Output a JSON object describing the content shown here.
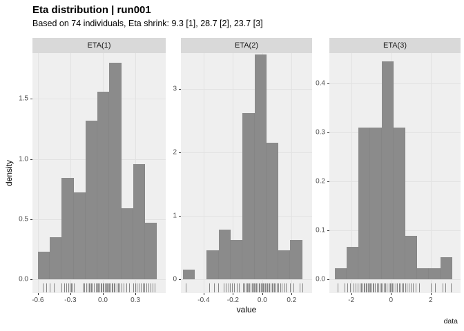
{
  "header": {
    "title": "Eta distribution | run001",
    "subtitle": "Based on 74 individuals, Eta shrink: 9.3 [1], 28.7 [2], 23.7 [3]"
  },
  "axes": {
    "ylabel": "density",
    "xlabel": "value",
    "caption": "data"
  },
  "colors": {
    "panel_bg": "#efefef",
    "gridline": "#e2e2e2",
    "bar_fill": "#8b8b8b",
    "strip_bg": "#d9d9d9",
    "axis_text": "#4d4d4d",
    "rug": "#2d2d2d",
    "title_text": "#000000"
  },
  "chart_data": {
    "type": "bar",
    "subtype": "faceted-histogram-with-rug",
    "title": "Eta distribution | run001",
    "subtitle": "Based on 74 individuals, Eta shrink: 9.3 [1], 28.7 [2], 23.7 [3]",
    "xlabel": "value",
    "ylabel": "density",
    "caption": "data",
    "grid": "major-only",
    "legend": "none",
    "panels": [
      {
        "label": "ETA(1)",
        "bin_start": -0.6,
        "bin_width": 0.11,
        "heights": [
          0.23,
          0.35,
          0.84,
          0.72,
          1.32,
          1.56,
          1.8,
          0.59,
          0.96,
          0.47
        ],
        "xlim": [
          -0.65,
          0.58
        ],
        "ylim_top": 1.88,
        "x_tick_values": [
          -0.6,
          -0.3,
          0.0,
          0.3
        ],
        "x_tick_labels": [
          "-0.6",
          "-0.3",
          "0.0",
          "0.3"
        ],
        "y_tick_values": [
          0.0,
          0.5,
          1.0,
          1.5
        ],
        "y_tick_labels": [
          "0.0",
          "0.5",
          "1.0",
          "1.5"
        ],
        "rug": [
          -0.555,
          -0.52,
          -0.49,
          -0.455,
          -0.38,
          -0.36,
          -0.335,
          -0.32,
          -0.305,
          -0.295,
          -0.285,
          -0.27,
          -0.185,
          -0.17,
          -0.155,
          -0.14,
          -0.13,
          -0.12,
          -0.11,
          -0.1,
          -0.08,
          -0.065,
          -0.05,
          -0.045,
          -0.035,
          -0.02,
          -0.01,
          0.0,
          0.008,
          0.018,
          0.03,
          0.04,
          0.05,
          0.06,
          0.072,
          0.082,
          0.09,
          0.1,
          0.11,
          0.125,
          0.14,
          0.152,
          0.17,
          0.19,
          0.215,
          0.245,
          0.28,
          0.3,
          0.315,
          0.33,
          0.35,
          0.37,
          0.385,
          0.4,
          0.42,
          0.44,
          0.46,
          0.475
        ]
      },
      {
        "label": "ETA(2)",
        "bin_start": -0.542,
        "bin_width": 0.0815,
        "heights": [
          0.15,
          0,
          0.46,
          0.78,
          0.62,
          2.62,
          3.54,
          2.15,
          0.46,
          0.62
        ],
        "xlim": [
          -0.555,
          0.34
        ],
        "ylim_top": 3.56,
        "x_tick_values": [
          -0.4,
          -0.2,
          0.0,
          0.2
        ],
        "x_tick_labels": [
          "-0.4",
          "-0.2",
          "0.0",
          "0.2"
        ],
        "y_tick_values": [
          0,
          1,
          2,
          3
        ],
        "y_tick_labels": [
          "0",
          "1",
          "2",
          "3"
        ],
        "rug": [
          -0.52,
          -0.36,
          -0.33,
          -0.3,
          -0.262,
          -0.248,
          -0.23,
          -0.22,
          -0.205,
          -0.19,
          -0.175,
          -0.16,
          -0.132,
          -0.12,
          -0.112,
          -0.104,
          -0.096,
          -0.088,
          -0.078,
          -0.07,
          -0.062,
          -0.054,
          -0.046,
          -0.04,
          -0.032,
          -0.025,
          -0.016,
          -0.008,
          0.0,
          0.006,
          0.012,
          0.02,
          0.027,
          0.035,
          0.042,
          0.05,
          0.057,
          0.066,
          0.073,
          0.082,
          0.09,
          0.1,
          0.11,
          0.122,
          0.135,
          0.15,
          0.163,
          0.19,
          0.212,
          0.256,
          0.272
        ]
      },
      {
        "label": "ETA(3)",
        "bin_start": -2.81,
        "bin_width": 0.59,
        "heights": [
          0.022,
          0.066,
          0.31,
          0.31,
          0.445,
          0.31,
          0.089,
          0.022,
          0.022,
          0.045
        ],
        "xlim": [
          -3.1,
          3.5
        ],
        "ylim_top": 0.462,
        "x_tick_values": [
          -2,
          0,
          2
        ],
        "x_tick_labels": [
          "-2",
          "0",
          "2"
        ],
        "y_tick_values": [
          0.0,
          0.1,
          0.2,
          0.3,
          0.4
        ],
        "y_tick_labels": [
          "0.0",
          "0.1",
          "0.2",
          "0.3",
          "0.4"
        ],
        "rug": [
          -2.7,
          -2.35,
          -2.2,
          -2.05,
          -1.9,
          -1.78,
          -1.68,
          -1.58,
          -1.5,
          -1.44,
          -1.38,
          -1.32,
          -1.27,
          -1.22,
          -1.16,
          -1.1,
          -1.04,
          -0.98,
          -0.92,
          -0.86,
          -0.8,
          -0.72,
          -0.64,
          -0.56,
          -0.48,
          -0.42,
          -0.34,
          -0.28,
          -0.2,
          -0.12,
          -0.05,
          0.0,
          0.06,
          0.14,
          0.24,
          0.3,
          0.4,
          0.46,
          0.56,
          0.62,
          0.72,
          0.8,
          0.9,
          1.0,
          1.1,
          1.24,
          1.4,
          2.0,
          2.2,
          2.6,
          2.75,
          3.0
        ]
      }
    ]
  }
}
